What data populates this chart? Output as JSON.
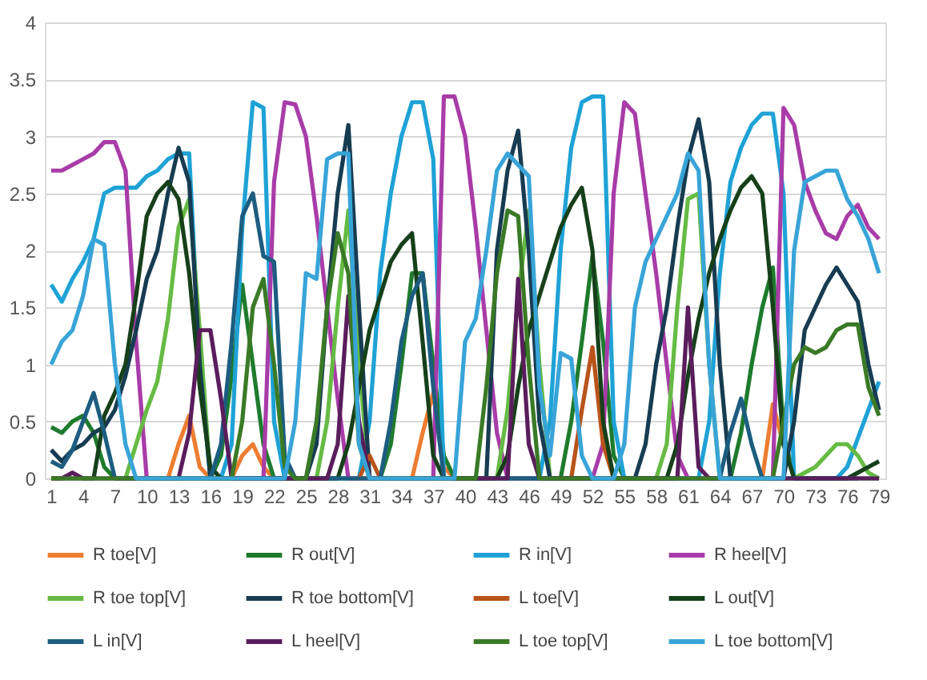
{
  "chart_data": {
    "type": "line",
    "categories": [
      "1",
      null,
      null,
      "4",
      null,
      null,
      "7",
      null,
      null,
      "10",
      null,
      null,
      "13",
      null,
      null,
      "16",
      null,
      null,
      "19",
      null,
      null,
      "22",
      null,
      null,
      "25",
      null,
      null,
      "28",
      null,
      null,
      "31",
      null,
      null,
      "34",
      null,
      null,
      "37",
      null,
      null,
      "40",
      null,
      null,
      "43",
      null,
      null,
      "46",
      null,
      null,
      "49",
      null,
      null,
      "52",
      null,
      null,
      "55",
      null,
      null,
      "58",
      null,
      null,
      "61",
      null,
      null,
      "64",
      null,
      null,
      "67",
      null,
      null,
      "70",
      null,
      null,
      "73",
      null,
      null,
      "76",
      null,
      null,
      "79"
    ],
    "ylim": [
      0,
      4
    ],
    "yticks": [
      0,
      0.5,
      1,
      1.5,
      2,
      2.5,
      3,
      3.5,
      4
    ],
    "grid": "y",
    "legend": "bottom",
    "series": [
      {
        "name": "R toe[V]",
        "color": "#ed7d31",
        "values": [
          null,
          null,
          null,
          null,
          null,
          null,
          null,
          null,
          null,
          null,
          null,
          0,
          0.3,
          0.55,
          0.1,
          0,
          null,
          0,
          0.2,
          0.3,
          0.1,
          0,
          null,
          null,
          null,
          null,
          null,
          null,
          null,
          null,
          null,
          null,
          null,
          null,
          0,
          0.4,
          0.75,
          0.1,
          0,
          null,
          null,
          null,
          null,
          null,
          null,
          null,
          null,
          null,
          null,
          null,
          null,
          null,
          null,
          null,
          null,
          null,
          null,
          null,
          null,
          null,
          null,
          null,
          null,
          null,
          null,
          null,
          null,
          0,
          0.65,
          0.3,
          0,
          null,
          null,
          null,
          null,
          null,
          null,
          null,
          null
        ]
      },
      {
        "name": "R out[V]",
        "color": "#1e7b2e",
        "values": [
          0.45,
          0.4,
          0.5,
          0.55,
          0.4,
          0.1,
          0,
          0,
          0,
          0,
          0,
          0,
          0,
          0,
          0,
          0,
          0.2,
          0.9,
          1.7,
          1.0,
          0.3,
          0,
          0,
          0,
          0,
          0,
          0,
          0,
          0,
          0,
          0,
          0,
          0.3,
          1.0,
          1.8,
          1.8,
          1.0,
          0.2,
          0,
          0,
          0,
          0,
          0,
          0,
          0,
          0,
          0,
          0,
          0,
          0.5,
          1.2,
          1.95,
          1.2,
          0.2,
          0,
          0,
          0,
          0,
          0,
          0,
          0,
          0,
          0,
          0,
          0,
          0.4,
          1.0,
          1.5,
          1.85,
          0.4,
          0,
          0,
          0,
          0,
          0,
          0,
          0,
          0,
          0
        ]
      },
      {
        "name": "R in[V]",
        "color": "#1fa2d6",
        "values": [
          1.7,
          1.55,
          1.75,
          1.9,
          2.1,
          2.5,
          2.55,
          2.55,
          2.55,
          2.65,
          2.7,
          2.8,
          2.85,
          2.85,
          1.0,
          0,
          0,
          0.3,
          2.2,
          3.3,
          3.25,
          0.5,
          0,
          0,
          0,
          0,
          0,
          0,
          0,
          0,
          0.5,
          1.8,
          2.5,
          3.0,
          3.3,
          3.3,
          2.8,
          0,
          0,
          0,
          0,
          0,
          0,
          0,
          0,
          0,
          0,
          0.5,
          2.0,
          2.9,
          3.3,
          3.35,
          3.35,
          0.5,
          0,
          0,
          0,
          0,
          0,
          0,
          0,
          0,
          0.5,
          1.8,
          2.6,
          2.9,
          3.1,
          3.2,
          3.2,
          2.5,
          0,
          0,
          0,
          0,
          0,
          0.1,
          0.35,
          0.6,
          0.85
        ]
      },
      {
        "name": "R heel[V]",
        "color": "#a83ca8",
        "values": [
          2.7,
          2.7,
          2.75,
          2.8,
          2.85,
          2.95,
          2.95,
          2.7,
          1.2,
          0,
          0,
          0,
          0,
          0,
          0,
          0,
          0,
          0,
          0,
          0,
          0,
          2.6,
          3.3,
          3.28,
          3.0,
          2.3,
          1.5,
          0.7,
          0,
          0,
          0,
          0,
          0,
          0,
          0,
          0,
          0,
          3.35,
          3.35,
          3.0,
          2.2,
          1.3,
          0.4,
          0,
          0,
          0,
          0,
          0,
          0,
          0,
          0,
          0,
          0.3,
          2.5,
          3.3,
          3.2,
          2.5,
          1.8,
          1.0,
          0.2,
          0,
          0,
          0,
          0,
          0,
          0,
          0,
          0,
          0,
          3.25,
          3.1,
          2.6,
          2.35,
          2.15,
          2.1,
          2.3,
          2.4,
          2.2,
          2.1
        ]
      },
      {
        "name": "R toe top[V]",
        "color": "#66bb44",
        "values": [
          null,
          null,
          null,
          null,
          null,
          null,
          null,
          0,
          0.3,
          0.6,
          0.85,
          1.4,
          2.2,
          2.45,
          1.3,
          0,
          0,
          0,
          0,
          0,
          0,
          0,
          0,
          0,
          0,
          0,
          0.5,
          1.5,
          2.35,
          1.0,
          0,
          0,
          0,
          0,
          0,
          0,
          0,
          0,
          0,
          0,
          0,
          0,
          0,
          0.6,
          1.6,
          2.35,
          1.0,
          0,
          0,
          0,
          0,
          0,
          0,
          0,
          0,
          0,
          0,
          0,
          0.3,
          1.5,
          2.45,
          2.5,
          1.0,
          0,
          0,
          0,
          0,
          0,
          0,
          0,
          0,
          0.05,
          0.1,
          0.2,
          0.3,
          0.3,
          0.2,
          0.05,
          0
        ]
      },
      {
        "name": "R toe bottom[V]",
        "color": "#173c52",
        "values": [
          0.25,
          0.15,
          0.25,
          0.3,
          0.4,
          0.45,
          0.6,
          0.9,
          1.3,
          1.75,
          2.0,
          2.5,
          2.9,
          2.6,
          1.0,
          0,
          0,
          0,
          0,
          0,
          0,
          0,
          0,
          0,
          0,
          0.3,
          1.5,
          2.5,
          3.1,
          1.5,
          0,
          0,
          0,
          0,
          0,
          0,
          0,
          0,
          0,
          0,
          0,
          0,
          2.0,
          2.7,
          3.05,
          2.0,
          0.5,
          0,
          0,
          0,
          0,
          0,
          0,
          0,
          0,
          0,
          0.3,
          1.0,
          1.5,
          2.2,
          2.8,
          3.15,
          2.6,
          1.0,
          0,
          0,
          0,
          0,
          0,
          0,
          0.5,
          1.3,
          1.5,
          1.7,
          1.85,
          1.7,
          1.55,
          1.0,
          0.6
        ]
      },
      {
        "name": "L toe[V]",
        "color": "#b9531a",
        "values": [
          null,
          null,
          null,
          null,
          null,
          null,
          null,
          null,
          null,
          null,
          null,
          null,
          null,
          null,
          null,
          null,
          null,
          null,
          null,
          null,
          null,
          null,
          null,
          null,
          null,
          null,
          null,
          null,
          null,
          0,
          0.2,
          0,
          null,
          null,
          null,
          null,
          null,
          null,
          null,
          null,
          null,
          null,
          null,
          null,
          null,
          null,
          null,
          null,
          null,
          0,
          0.6,
          1.15,
          0.3,
          0,
          null,
          null,
          null,
          null,
          null,
          null,
          null,
          null,
          null,
          null,
          null,
          null,
          null,
          null,
          null,
          null,
          null,
          null,
          null,
          null,
          null,
          null,
          null,
          null,
          null
        ]
      },
      {
        "name": "L out[V]",
        "color": "#16401a",
        "values": [
          0,
          0,
          0,
          0,
          0,
          0.55,
          0.75,
          1.0,
          1.6,
          2.3,
          2.5,
          2.6,
          2.45,
          1.8,
          0.8,
          0.1,
          0,
          0,
          0,
          0,
          0,
          0,
          0,
          0,
          0,
          0,
          0,
          0,
          0.3,
          0.8,
          1.3,
          1.6,
          1.9,
          2.05,
          2.15,
          1.2,
          0.2,
          0,
          0,
          0,
          0,
          0,
          0,
          0.2,
          0.8,
          1.3,
          1.6,
          1.9,
          2.2,
          2.4,
          2.55,
          2.0,
          0.5,
          0,
          0,
          0,
          0,
          0,
          0,
          0.3,
          0.9,
          1.4,
          1.8,
          2.1,
          2.35,
          2.55,
          2.65,
          2.5,
          1.5,
          0.3,
          0,
          0,
          0,
          0,
          0,
          0,
          0.05,
          0.1,
          0.15
        ]
      },
      {
        "name": "L in[V]",
        "color": "#1c5d80",
        "values": [
          0.15,
          0.1,
          0.25,
          0.5,
          0.75,
          0.4,
          0,
          0,
          0,
          0,
          0,
          0,
          0,
          0,
          0,
          0,
          0.3,
          1.2,
          2.3,
          2.5,
          1.95,
          1.9,
          0.2,
          0,
          0,
          0,
          0,
          0,
          0,
          0,
          0,
          0,
          0.5,
          1.2,
          1.6,
          1.8,
          0.8,
          0,
          0,
          0,
          0,
          0,
          0,
          0,
          0,
          0,
          0,
          0,
          0,
          0,
          0,
          0,
          0,
          0,
          0,
          0,
          0,
          0,
          0,
          0,
          0,
          0,
          0,
          0,
          0.4,
          0.7,
          0.3,
          0,
          0,
          0,
          0,
          0,
          0,
          0,
          0,
          0,
          0,
          null,
          null
        ]
      },
      {
        "name": "L heel[V]",
        "color": "#5a1d5c",
        "values": [
          0,
          0,
          0.05,
          0,
          0,
          0,
          0,
          0,
          0,
          0,
          0,
          0,
          0,
          0.4,
          1.3,
          1.3,
          0.7,
          0,
          0,
          0,
          0,
          0,
          0,
          0,
          0,
          0,
          0,
          0.3,
          1.6,
          0.5,
          0,
          0,
          0,
          0,
          0,
          0,
          0,
          0,
          0,
          0,
          0,
          0,
          0,
          0,
          1.75,
          0.3,
          0,
          0,
          0,
          0,
          0,
          0,
          0,
          0,
          0,
          0,
          0,
          0,
          0,
          0,
          1.5,
          0.1,
          0,
          0,
          0,
          0,
          0,
          0,
          0,
          0,
          0,
          0,
          0,
          0,
          0,
          0,
          0,
          0,
          0
        ]
      },
      {
        "name": "L toe top[V]",
        "color": "#3a7a26",
        "values": [
          0,
          0,
          0,
          0,
          0,
          0,
          0,
          0,
          0,
          0,
          0,
          0,
          0,
          0,
          0,
          0,
          0,
          0,
          0.5,
          1.5,
          1.75,
          1.0,
          0.1,
          0,
          0,
          0.5,
          1.5,
          2.15,
          1.8,
          0.3,
          0,
          0,
          0,
          0,
          0,
          0,
          0,
          0,
          0,
          0,
          0,
          0.8,
          1.8,
          2.35,
          2.3,
          1.0,
          0,
          0,
          0,
          0,
          0,
          0,
          0,
          0,
          0,
          0,
          0,
          0,
          0,
          0,
          0,
          0,
          0,
          0,
          0,
          0,
          0,
          0,
          0,
          0.5,
          1.0,
          1.15,
          1.1,
          1.15,
          1.3,
          1.35,
          1.35,
          0.8,
          0.55
        ]
      },
      {
        "name": "L toe bottom[V]",
        "color": "#38a4d8",
        "values": [
          1.0,
          1.2,
          1.3,
          1.6,
          2.1,
          2.05,
          1.0,
          0.3,
          0,
          0,
          0,
          0,
          0,
          0,
          0,
          0,
          0,
          0,
          0,
          0,
          0,
          0,
          0,
          0.5,
          1.8,
          1.75,
          2.8,
          2.85,
          2.85,
          0.3,
          0,
          0,
          0,
          0,
          0,
          0,
          0,
          0,
          0,
          1.2,
          1.4,
          2.0,
          2.7,
          2.85,
          2.75,
          2.65,
          0.8,
          0.2,
          1.1,
          1.05,
          0.2,
          0,
          0,
          0,
          0.3,
          1.5,
          1.9,
          2.1,
          2.3,
          2.5,
          2.85,
          2.7,
          1.0,
          0,
          0,
          0,
          0,
          0,
          0,
          0,
          2.0,
          2.6,
          2.65,
          2.7,
          2.7,
          2.45,
          2.3,
          2.1,
          1.8
        ]
      }
    ]
  }
}
